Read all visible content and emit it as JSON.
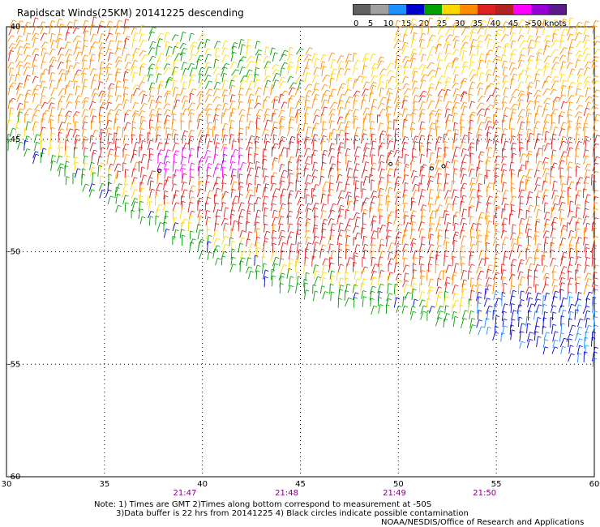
{
  "title": "Rapidscat Winds(25KM) 20141225 descending",
  "legend": {
    "labels": [
      "0",
      "5",
      "10",
      "15",
      "20",
      "25",
      "30",
      "35",
      "40",
      "45",
      ">50 knots"
    ],
    "colors": [
      "#606060",
      "#a0a0a0",
      "#1e90ff",
      "#0000cd",
      "#00a000",
      "#ffd700",
      "#ff8c00",
      "#e02020",
      "#b22222",
      "#ff00ff",
      "#9400d3",
      "#5a1a8a"
    ]
  },
  "notes": {
    "line1": "Note: 1) Times are GMT 2)Times along bottom correspond to measurement at -50S",
    "line2": "3)Data buffer is 22 hrs from 20141225 4) Black circles indicate possible contamination",
    "credit": "NOAA/NESDIS/Office of Research and Applications"
  },
  "chart_data": {
    "type": "wind-barb map",
    "title": "Rapidscat Winds(25KM) 20141225 descending",
    "units": "knots",
    "xlim": [
      30,
      60
    ],
    "ylim": [
      -60,
      -40
    ],
    "x_ticks": [
      "30",
      "35",
      "40",
      "45",
      "50",
      "55",
      "60"
    ],
    "y_ticks": [
      "-40",
      "-45",
      "-50",
      "-55",
      "-60"
    ],
    "time_labels": [
      {
        "lon": 39.1,
        "time": "21:47"
      },
      {
        "lon": 44.3,
        "time": "21:48"
      },
      {
        "lon": 49.8,
        "time": "21:49"
      },
      {
        "lon": 54.4,
        "time": "21:50"
      }
    ],
    "grid": "dotted",
    "color_scale_knots": [
      0,
      5,
      10,
      15,
      20,
      25,
      30,
      35,
      40,
      45,
      50
    ],
    "swath": {
      "upper_edge": [
        [
          30,
          -40
        ],
        [
          44,
          -40
        ],
        [
          60,
          -40
        ]
      ],
      "lower_edge": [
        [
          30,
          -45.5
        ],
        [
          40,
          -50.5
        ],
        [
          45,
          -52.2
        ],
        [
          50,
          -53.0
        ],
        [
          55,
          -54.0
        ],
        [
          60,
          -55.2
        ]
      ],
      "northern_gap_edge": [
        [
          30,
          -40
        ],
        [
          44,
          -40
        ],
        [
          60,
          -40
        ]
      ]
    },
    "wind_regions": [
      {
        "area": "northwest 30-36E, -40 to -43",
        "speed_knots": 27
      },
      {
        "area": "north 38-44E, -40 to -43",
        "speed_knots": 18
      },
      {
        "area": "north 46-60E, -40 to -44",
        "speed_knots": 24
      },
      {
        "area": "central 35-50E, -45 to -50",
        "speed_knots": 32
      },
      {
        "area": "magenta core 38-42E, -46",
        "speed_knots": 42
      },
      {
        "area": "east 50-60E, -45 to -51",
        "speed_knots": 30
      },
      {
        "area": "southern edge 40-52E, -50 to -53",
        "speed_knots": 16
      },
      {
        "area": "southeast 54-60E, -52 to -55",
        "speed_knots": 10
      }
    ]
  }
}
